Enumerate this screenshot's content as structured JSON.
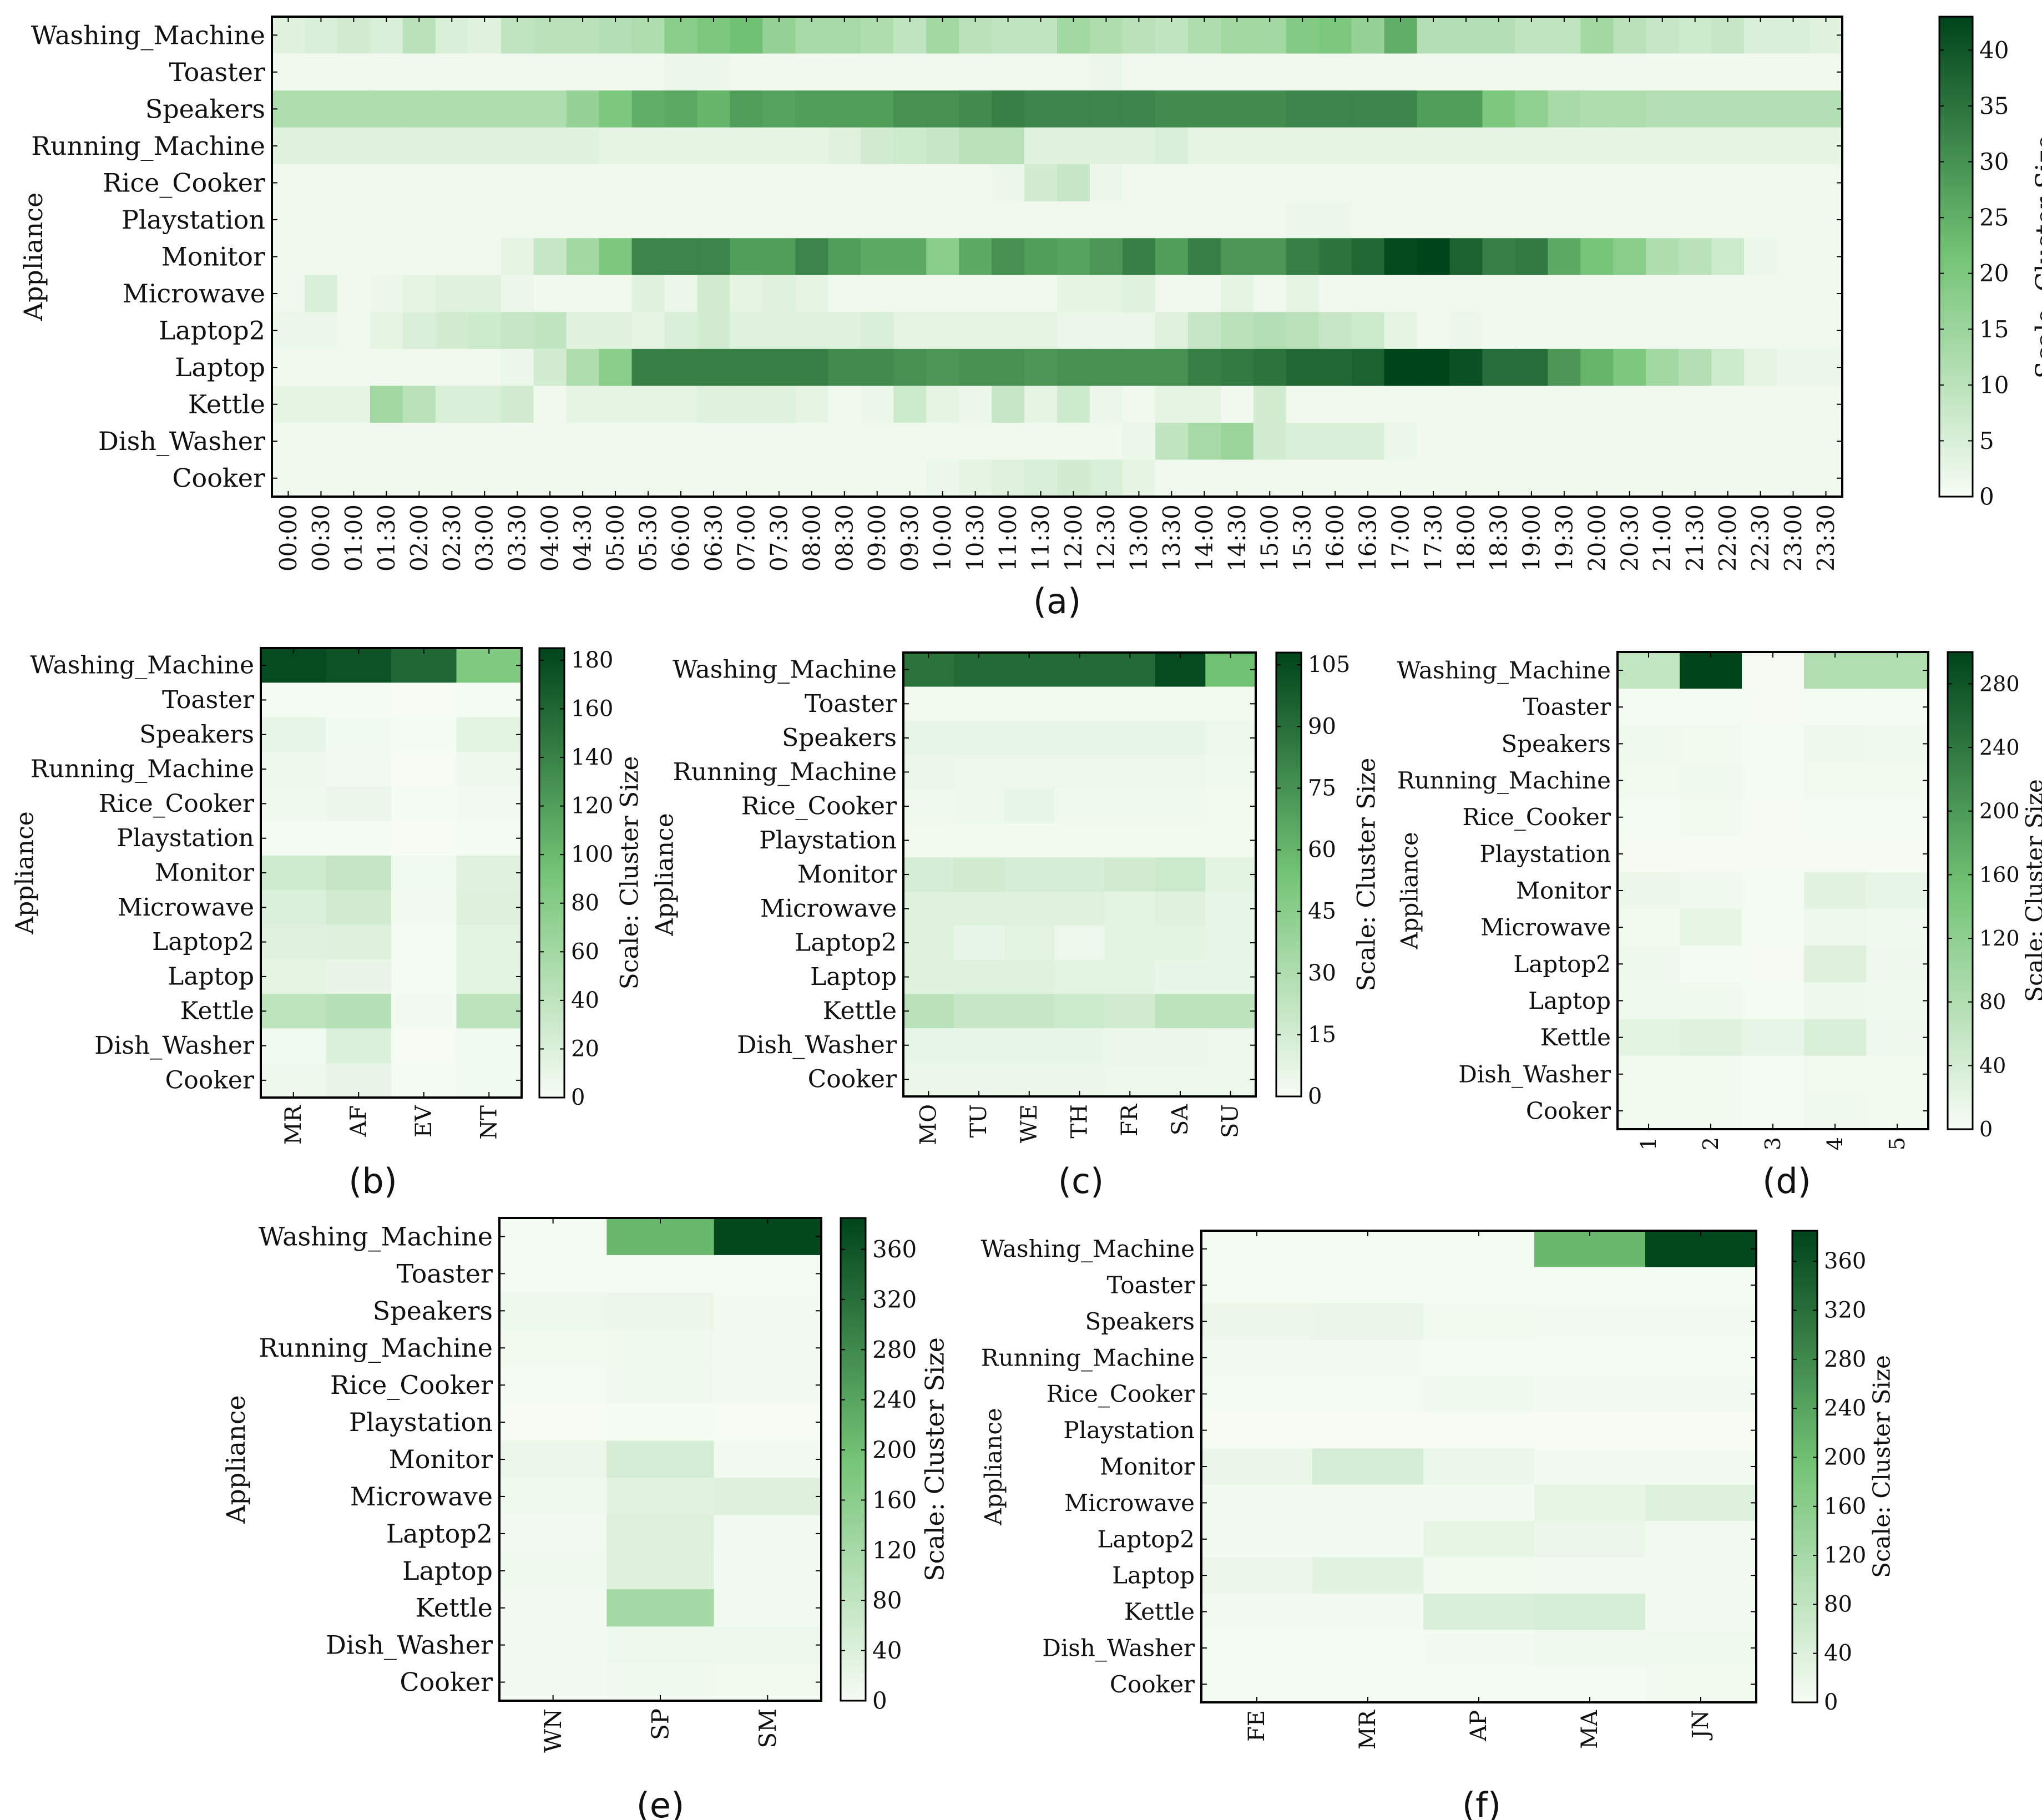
{
  "colors": {
    "low": "#f7fcf5",
    "mid": "#74c476",
    "high": "#00441b",
    "frame": "#000000"
  },
  "chart_data": [
    {
      "id": "a",
      "type": "heatmap",
      "caption": "(a)",
      "ylabel": "Appliance",
      "colorbar_label": "Scale: Cluster Size",
      "vmax": 43,
      "colorbar_ticks": [
        0,
        5,
        10,
        15,
        20,
        25,
        30,
        35,
        40
      ],
      "rows": [
        "Washing_Machine",
        "Toaster",
        "Speakers",
        "Running_Machine",
        "Rice_Cooker",
        "Playstation",
        "Monitor",
        "Microwave",
        "Laptop2",
        "Laptop",
        "Kettle",
        "Dish_Washer",
        "Cooker"
      ],
      "columns": [
        "00:00",
        "00:30",
        "01:00",
        "01:30",
        "02:00",
        "02:30",
        "03:00",
        "03:30",
        "04:00",
        "04:30",
        "05:00",
        "05:30",
        "06:00",
        "06:30",
        "07:00",
        "07:30",
        "08:00",
        "08:30",
        "09:00",
        "09:30",
        "10:00",
        "10:30",
        "11:00",
        "11:30",
        "12:00",
        "12:30",
        "13:00",
        "13:30",
        "14:00",
        "14:30",
        "15:00",
        "15:30",
        "16:00",
        "16:30",
        "17:00",
        "17:30",
        "18:00",
        "18:30",
        "19:00",
        "19:30",
        "20:00",
        "20:30",
        "21:00",
        "21:30",
        "22:00",
        "22:30",
        "23:00",
        "23:30"
      ],
      "values": [
        [
          4,
          5,
          6,
          5,
          10,
          5,
          4,
          9,
          10,
          10,
          11,
          12,
          18,
          20,
          22,
          16,
          13,
          13,
          12,
          9,
          14,
          10,
          9,
          9,
          14,
          12,
          10,
          9,
          12,
          14,
          14,
          19,
          20,
          16,
          25,
          11,
          11,
          11,
          9,
          9,
          14,
          10,
          8,
          7,
          8,
          5,
          5,
          4
        ],
        [
          1,
          1,
          1,
          1,
          1,
          1,
          1,
          1,
          1,
          1,
          1,
          1,
          2,
          2,
          1,
          1,
          1,
          1,
          1,
          1,
          1,
          1,
          1,
          1,
          1,
          2,
          1,
          1,
          1,
          1,
          1,
          1,
          1,
          1,
          1,
          1,
          1,
          1,
          1,
          1,
          1,
          1,
          1,
          1,
          1,
          1,
          1,
          1
        ],
        [
          12,
          12,
          12,
          12,
          12,
          12,
          12,
          12,
          12,
          16,
          20,
          25,
          26,
          24,
          28,
          27,
          28,
          28,
          28,
          30,
          30,
          31,
          33,
          32,
          32,
          32,
          32,
          31,
          31,
          31,
          31,
          32,
          32,
          32,
          32,
          28,
          28,
          20,
          17,
          13,
          12,
          12,
          11,
          11,
          11,
          11,
          11,
          11
        ],
        [
          4,
          4,
          4,
          4,
          4,
          4,
          4,
          4,
          4,
          4,
          3,
          3,
          3,
          3,
          3,
          3,
          3,
          4,
          6,
          7,
          8,
          10,
          10,
          4,
          4,
          4,
          4,
          5,
          3,
          3,
          3,
          3,
          3,
          3,
          3,
          3,
          3,
          3,
          3,
          3,
          3,
          3,
          3,
          3,
          3,
          3,
          3,
          3
        ],
        [
          1,
          1,
          1,
          1,
          1,
          1,
          1,
          1,
          1,
          1,
          1,
          1,
          1,
          1,
          1,
          1,
          1,
          1,
          1,
          1,
          1,
          1,
          2,
          6,
          8,
          2,
          1,
          1,
          1,
          1,
          1,
          1,
          1,
          1,
          1,
          1,
          1,
          1,
          1,
          1,
          1,
          1,
          1,
          1,
          1,
          1,
          1,
          1
        ],
        [
          1,
          1,
          1,
          1,
          1,
          1,
          1,
          1,
          1,
          1,
          1,
          1,
          1,
          1,
          1,
          1,
          1,
          1,
          1,
          1,
          1,
          1,
          1,
          1,
          1,
          1,
          1,
          1,
          1,
          1,
          1,
          2,
          2,
          1,
          1,
          1,
          1,
          1,
          1,
          1,
          1,
          1,
          1,
          1,
          1,
          1,
          1,
          1
        ],
        [
          1,
          1,
          1,
          1,
          1,
          1,
          1,
          3,
          8,
          14,
          20,
          32,
          32,
          32,
          28,
          28,
          32,
          28,
          26,
          26,
          18,
          26,
          30,
          28,
          27,
          29,
          33,
          28,
          33,
          29,
          29,
          33,
          35,
          37,
          42,
          43,
          38,
          33,
          34,
          26,
          21,
          18,
          12,
          10,
          7,
          2,
          1,
          1
        ],
        [
          1,
          5,
          1,
          2,
          3,
          4,
          4,
          2,
          1,
          1,
          1,
          4,
          2,
          6,
          3,
          4,
          3,
          1,
          1,
          1,
          1,
          1,
          1,
          1,
          3,
          3,
          4,
          1,
          1,
          3,
          1,
          3,
          1,
          1,
          1,
          1,
          1,
          1,
          1,
          1,
          1,
          1,
          1,
          1,
          1,
          1,
          1,
          1
        ],
        [
          2,
          2,
          1,
          3,
          5,
          6,
          7,
          8,
          9,
          4,
          4,
          3,
          5,
          6,
          4,
          4,
          4,
          4,
          5,
          3,
          3,
          3,
          3,
          3,
          2,
          2,
          2,
          4,
          8,
          10,
          11,
          10,
          8,
          7,
          3,
          1,
          2,
          1,
          1,
          1,
          1,
          1,
          1,
          1,
          1,
          1,
          1,
          1
        ],
        [
          1,
          1,
          1,
          1,
          1,
          1,
          1,
          2,
          6,
          12,
          18,
          33,
          33,
          33,
          33,
          33,
          33,
          31,
          31,
          30,
          29,
          30,
          30,
          29,
          30,
          30,
          30,
          30,
          33,
          34,
          35,
          37,
          37,
          38,
          43,
          43,
          41,
          36,
          36,
          29,
          24,
          20,
          14,
          11,
          7,
          3,
          2,
          2
        ],
        [
          3,
          3,
          3,
          14,
          10,
          5,
          5,
          6,
          1,
          3,
          3,
          3,
          3,
          4,
          4,
          4,
          3,
          1,
          2,
          7,
          3,
          2,
          8,
          3,
          7,
          2,
          1,
          3,
          3,
          1,
          6,
          1,
          1,
          1,
          1,
          1,
          1,
          1,
          1,
          1,
          1,
          1,
          1,
          1,
          1,
          1,
          1,
          1
        ],
        [
          1,
          1,
          1,
          1,
          1,
          1,
          1,
          1,
          1,
          1,
          1,
          1,
          1,
          1,
          1,
          1,
          1,
          1,
          1,
          1,
          1,
          1,
          1,
          1,
          1,
          1,
          2,
          9,
          13,
          15,
          6,
          5,
          5,
          5,
          2,
          1,
          1,
          1,
          1,
          1,
          1,
          1,
          1,
          1,
          1,
          1,
          1,
          1
        ],
        [
          1,
          1,
          1,
          1,
          1,
          1,
          1,
          1,
          1,
          1,
          1,
          1,
          1,
          1,
          1,
          1,
          1,
          1,
          1,
          1,
          2,
          3,
          4,
          5,
          6,
          5,
          3,
          1,
          1,
          1,
          1,
          1,
          1,
          1,
          1,
          1,
          1,
          1,
          1,
          1,
          1,
          1,
          1,
          1,
          1,
          1,
          1,
          1
        ]
      ]
    },
    {
      "id": "b",
      "type": "heatmap",
      "caption": "(b)",
      "ylabel": "Appliance",
      "colorbar_label": "Scale: Cluster Size",
      "vmax": 185,
      "colorbar_ticks": [
        0,
        20,
        40,
        60,
        80,
        100,
        120,
        140,
        160,
        180
      ],
      "rows": [
        "Washing_Machine",
        "Toaster",
        "Speakers",
        "Running_Machine",
        "Rice_Cooker",
        "Playstation",
        "Monitor",
        "Microwave",
        "Laptop2",
        "Laptop",
        "Kettle",
        "Dish_Washer",
        "Cooker"
      ],
      "columns": [
        "MR",
        "AF",
        "EV",
        "NT"
      ],
      "values": [
        [
          180,
          175,
          160,
          85
        ],
        [
          2,
          2,
          1,
          2
        ],
        [
          12,
          4,
          2,
          14
        ],
        [
          6,
          3,
          1,
          6
        ],
        [
          5,
          9,
          2,
          3
        ],
        [
          2,
          2,
          1,
          2
        ],
        [
          28,
          36,
          4,
          16
        ],
        [
          20,
          26,
          3,
          18
        ],
        [
          16,
          18,
          2,
          14
        ],
        [
          13,
          10,
          2,
          14
        ],
        [
          40,
          46,
          3,
          42
        ],
        [
          4,
          20,
          1,
          4
        ],
        [
          6,
          10,
          2,
          4
        ]
      ]
    },
    {
      "id": "c",
      "type": "heatmap",
      "caption": "(c)",
      "ylabel": "Appliance",
      "colorbar_label": "Scale: Cluster Size",
      "vmax": 108,
      "colorbar_ticks": [
        0,
        15,
        30,
        45,
        60,
        75,
        90,
        105
      ],
      "rows": [
        "Washing_Machine",
        "Toaster",
        "Speakers",
        "Running_Machine",
        "Rice_Cooker",
        "Playstation",
        "Monitor",
        "Microwave",
        "Laptop2",
        "Laptop",
        "Kettle",
        "Dish_Washer",
        "Cooker"
      ],
      "columns": [
        "MO",
        "TU",
        "WE",
        "TH",
        "FR",
        "SA",
        "SU"
      ],
      "values": [
        [
          88,
          92,
          92,
          92,
          92,
          105,
          55
        ],
        [
          2,
          2,
          2,
          2,
          2,
          2,
          2
        ],
        [
          7,
          6,
          6,
          6,
          6,
          6,
          4
        ],
        [
          5,
          4,
          4,
          4,
          4,
          4,
          3
        ],
        [
          3,
          4,
          6,
          3,
          3,
          3,
          2
        ],
        [
          2,
          2,
          2,
          2,
          2,
          2,
          2
        ],
        [
          14,
          16,
          14,
          14,
          16,
          18,
          8
        ],
        [
          10,
          10,
          10,
          10,
          8,
          10,
          6
        ],
        [
          10,
          6,
          8,
          4,
          8,
          8,
          6
        ],
        [
          10,
          10,
          10,
          8,
          8,
          6,
          6
        ],
        [
          25,
          20,
          20,
          18,
          16,
          24,
          24
        ],
        [
          6,
          6,
          6,
          6,
          5,
          5,
          4
        ],
        [
          5,
          5,
          5,
          5,
          4,
          4,
          4
        ]
      ]
    },
    {
      "id": "d",
      "type": "heatmap",
      "caption": "(d)",
      "ylabel": "Appliance",
      "colorbar_label": "Scale: Cluster Size",
      "vmax": 300,
      "colorbar_ticks": [
        0,
        40,
        80,
        120,
        160,
        200,
        240,
        280
      ],
      "rows": [
        "Washing_Machine",
        "Toaster",
        "Speakers",
        "Running_Machine",
        "Rice_Cooker",
        "Playstation",
        "Monitor",
        "Microwave",
        "Laptop2",
        "Laptop",
        "Kettle",
        "Dish_Washer",
        "Cooker"
      ],
      "columns": [
        "1",
        "2",
        "3",
        "4",
        "5"
      ],
      "values": [
        [
          60,
          300,
          2,
          80,
          80
        ],
        [
          4,
          3,
          2,
          4,
          3
        ],
        [
          8,
          6,
          4,
          10,
          8
        ],
        [
          6,
          8,
          4,
          6,
          6
        ],
        [
          4,
          6,
          2,
          4,
          4
        ],
        [
          2,
          2,
          2,
          2,
          2
        ],
        [
          14,
          8,
          4,
          24,
          18
        ],
        [
          6,
          20,
          4,
          12,
          8
        ],
        [
          10,
          4,
          2,
          30,
          10
        ],
        [
          8,
          8,
          4,
          10,
          8
        ],
        [
          22,
          28,
          18,
          34,
          10
        ],
        [
          6,
          6,
          4,
          6,
          6
        ],
        [
          6,
          6,
          4,
          8,
          6
        ]
      ]
    },
    {
      "id": "e",
      "type": "heatmap",
      "caption": "(e)",
      "ylabel": "Appliance",
      "colorbar_label": "Scale: Cluster Size",
      "vmax": 385,
      "colorbar_ticks": [
        0,
        40,
        80,
        120,
        160,
        200,
        240,
        280,
        320,
        360
      ],
      "rows": [
        "Washing_Machine",
        "Toaster",
        "Speakers",
        "Running_Machine",
        "Rice_Cooker",
        "Playstation",
        "Monitor",
        "Microwave",
        "Laptop2",
        "Laptop",
        "Kettle",
        "Dish_Washer",
        "Cooker"
      ],
      "columns": [
        "WN",
        "SP",
        "SM"
      ],
      "values": [
        [
          4,
          210,
          380
        ],
        [
          4,
          4,
          4
        ],
        [
          14,
          16,
          6
        ],
        [
          8,
          10,
          6
        ],
        [
          4,
          10,
          6
        ],
        [
          2,
          4,
          2
        ],
        [
          18,
          50,
          6
        ],
        [
          10,
          30,
          40
        ],
        [
          6,
          40,
          6
        ],
        [
          12,
          38,
          6
        ],
        [
          6,
          120,
          6
        ],
        [
          6,
          14,
          14
        ],
        [
          6,
          10,
          8
        ]
      ]
    },
    {
      "id": "f",
      "type": "heatmap",
      "caption": "(f)",
      "ylabel": "Appliance",
      "colorbar_label": "Scale: Cluster Size",
      "vmax": 385,
      "colorbar_ticks": [
        0,
        40,
        80,
        120,
        160,
        200,
        240,
        280,
        320,
        360
      ],
      "rows": [
        "Washing_Machine",
        "Toaster",
        "Speakers",
        "Running_Machine",
        "Rice_Cooker",
        "Playstation",
        "Monitor",
        "Microwave",
        "Laptop2",
        "Laptop",
        "Kettle",
        "Dish_Washer",
        "Cooker"
      ],
      "columns": [
        "FE",
        "MR",
        "AP",
        "MA",
        "JN"
      ],
      "values": [
        [
          4,
          4,
          4,
          210,
          380
        ],
        [
          4,
          4,
          4,
          4,
          4
        ],
        [
          16,
          20,
          8,
          6,
          6
        ],
        [
          6,
          6,
          4,
          4,
          4
        ],
        [
          4,
          4,
          10,
          6,
          6
        ],
        [
          2,
          2,
          2,
          2,
          2
        ],
        [
          20,
          50,
          18,
          6,
          6
        ],
        [
          6,
          6,
          6,
          24,
          40
        ],
        [
          6,
          6,
          24,
          18,
          6
        ],
        [
          16,
          30,
          8,
          6,
          6
        ],
        [
          6,
          6,
          44,
          48,
          6
        ],
        [
          4,
          4,
          6,
          12,
          12
        ],
        [
          4,
          4,
          4,
          4,
          8
        ]
      ]
    }
  ]
}
